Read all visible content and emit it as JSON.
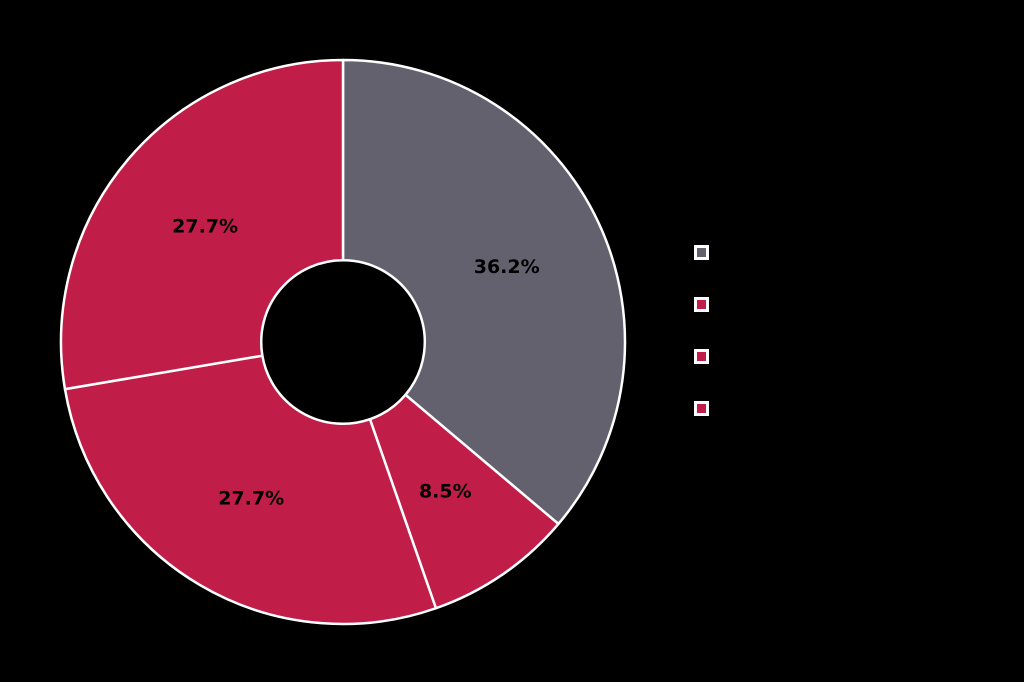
{
  "background_color": "#000000",
  "chart_data": {
    "type": "pie",
    "subtype": "donut",
    "values": [
      36.2,
      8.5,
      27.7,
      27.7
    ],
    "slice_labels": [
      "36.2%",
      "8.5%",
      "27.7%",
      "27.7%"
    ],
    "colors": [
      "#64616E",
      "#C01E48",
      "#C01E48",
      "#C01E48"
    ],
    "start_angle_deg": 90,
    "clockwise": true,
    "donut_hole_ratio": 0.29,
    "edge_color": "#FFFFFF",
    "label_color": "#000000",
    "label_distance": 0.64,
    "legend": {
      "position": "right",
      "items": [
        {
          "label": "",
          "color": "#64616E"
        },
        {
          "label": "",
          "color": "#C01E48"
        },
        {
          "label": "",
          "color": "#C01E48"
        },
        {
          "label": "",
          "color": "#C01E48"
        }
      ]
    }
  }
}
